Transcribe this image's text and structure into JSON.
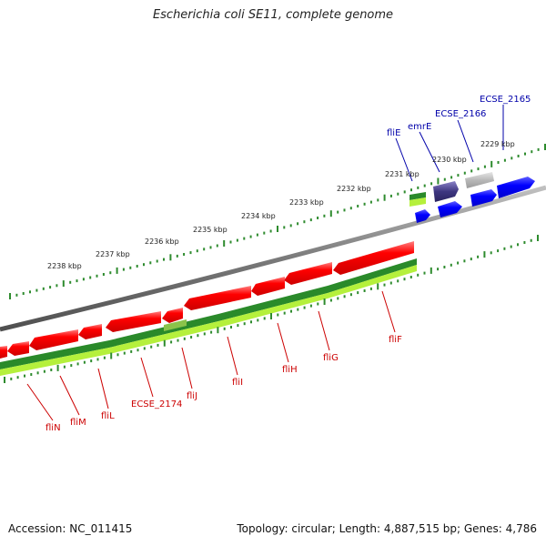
{
  "title": "Escherichia coli SE11, complete genome",
  "footer": {
    "accession": "Accession: NC_011415",
    "topology": "Topology: circular; Length: 4,887,515 bp; Genes: 4,786"
  },
  "scale_labels": [
    "2229 kbp",
    "2230 kbp",
    "2231 kbp",
    "2232 kbp",
    "2233 kbp",
    "2234 kbp",
    "2235 kbp",
    "2236 kbp",
    "2237 kbp",
    "2238 kbp"
  ],
  "top_gene_labels": [
    "ECSE_2165",
    "ECSE_2166",
    "emrE",
    "fliE"
  ],
  "bottom_gene_labels": [
    "fliF",
    "fliG",
    "fliH",
    "fliI",
    "fliJ",
    "ECSE_2174",
    "fliL",
    "fliM",
    "fliN"
  ],
  "colors": {
    "forward_gene": "#0000ff",
    "reverse_gene": "#ff0000",
    "label_forward": "#0000aa",
    "label_reverse": "#cc0000",
    "backbone": "#808080",
    "tick": "#2e8b2e",
    "gc_dark": "#2a8a2a",
    "gc_light": "#b5f03c"
  }
}
